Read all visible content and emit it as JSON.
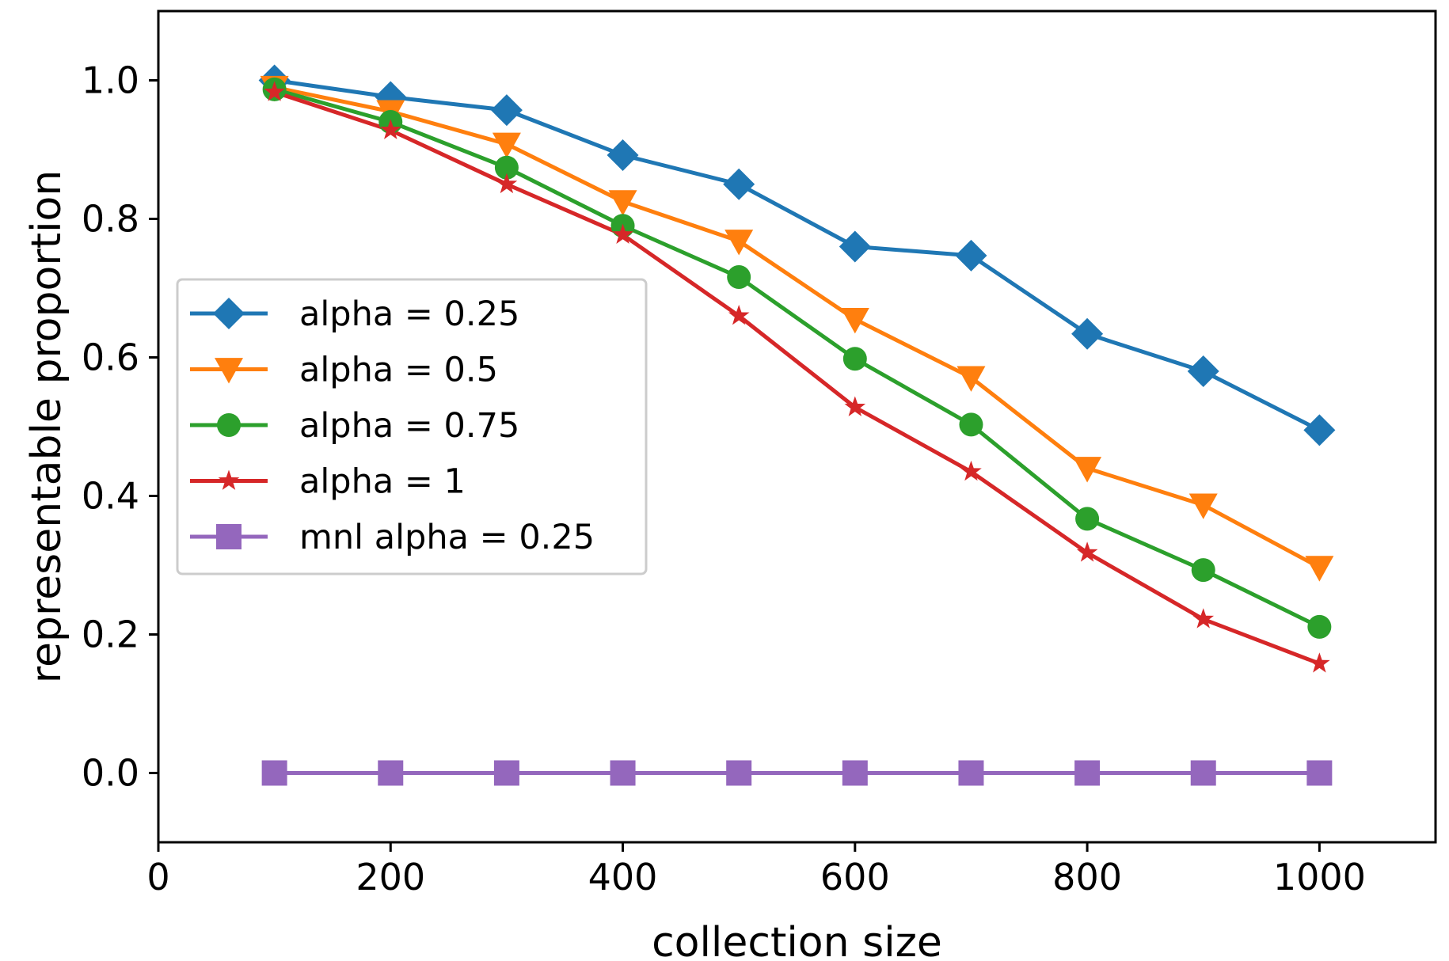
{
  "chart_data": {
    "type": "line",
    "xlabel": "collection size",
    "ylabel": "representable proportion",
    "xlim": [
      0,
      1100
    ],
    "ylim": [
      -0.1,
      1.1
    ],
    "xticks": [
      0,
      200,
      400,
      600,
      800,
      1000
    ],
    "xtick_labels": [
      "0",
      "200",
      "400",
      "600",
      "800",
      "1000"
    ],
    "yticks": [
      0.0,
      0.2,
      0.4,
      0.6,
      0.8,
      1.0
    ],
    "ytick_labels": [
      "0.0",
      "0.2",
      "0.4",
      "0.6",
      "0.8",
      "1.0"
    ],
    "grid": false,
    "legend_position": "center-left",
    "x": [
      100,
      200,
      300,
      400,
      500,
      600,
      700,
      800,
      900,
      1000
    ],
    "series": [
      {
        "name": "alpha = 0.25",
        "marker": "diamond",
        "color": "#1f77b4",
        "values": [
          1.0,
          0.976,
          0.957,
          0.892,
          0.85,
          0.76,
          0.747,
          0.634,
          0.58,
          0.495
        ]
      },
      {
        "name": "alpha = 0.5",
        "marker": "triangle-down",
        "color": "#ff7f0e",
        "values": [
          0.99,
          0.955,
          0.908,
          0.825,
          0.768,
          0.655,
          0.571,
          0.44,
          0.387,
          0.297
        ]
      },
      {
        "name": "alpha = 0.75",
        "marker": "circle",
        "color": "#2ca02c",
        "values": [
          0.987,
          0.94,
          0.874,
          0.79,
          0.716,
          0.598,
          0.503,
          0.367,
          0.293,
          0.211
        ]
      },
      {
        "name": "alpha = 1",
        "marker": "star",
        "color": "#d62728",
        "values": [
          0.983,
          0.928,
          0.85,
          0.777,
          0.66,
          0.528,
          0.435,
          0.318,
          0.222,
          0.158
        ]
      },
      {
        "name": "mnl alpha = 0.25",
        "marker": "square",
        "color": "#9467bd",
        "values": [
          0.0,
          0.0,
          0.0,
          0.0,
          0.0,
          0.0,
          0.0,
          0.0,
          0.0,
          0.0
        ]
      }
    ]
  }
}
